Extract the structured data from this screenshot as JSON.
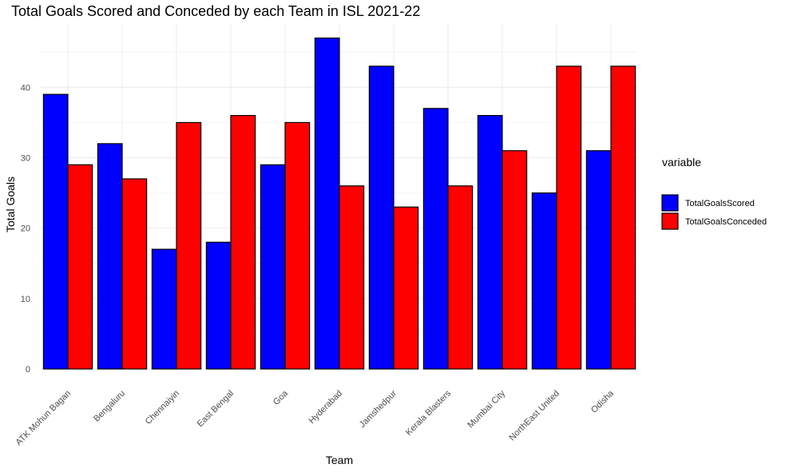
{
  "chart_data": {
    "type": "bar",
    "title": "Total Goals Scored and Conceded by each Team in ISL 2021-22",
    "xlabel": "Team",
    "ylabel": "Total Goals",
    "ylim": [
      0,
      49
    ],
    "yticks": [
      0,
      10,
      20,
      30,
      40
    ],
    "grid": true,
    "legend_title": "variable",
    "legend_position": "right",
    "categories": [
      "ATK Mohun Bagan",
      "Bengaluru",
      "Chennaiyin",
      "East Bengal",
      "Goa",
      "Hyderabad",
      "Jamshedpur",
      "Kerala Blasters",
      "Mumbai City",
      "NorthEast United",
      "Odisha"
    ],
    "series": [
      {
        "name": "TotalGoalsScored",
        "color": "#0000ff",
        "values": [
          39,
          32,
          17,
          18,
          29,
          47,
          43,
          37,
          36,
          25,
          31
        ]
      },
      {
        "name": "TotalGoalsConceded",
        "color": "#ff0000",
        "values": [
          29,
          27,
          35,
          36,
          35,
          26,
          23,
          26,
          31,
          43,
          43
        ]
      }
    ]
  }
}
